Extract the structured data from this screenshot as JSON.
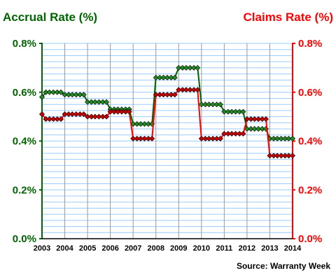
{
  "chart_data": {
    "type": "line",
    "title_left": "Accrual Rate (%)",
    "title_right": "Claims Rate (%)",
    "source": "Source: Warranty Week",
    "x_tick_labels": [
      "2003",
      "2004",
      "2005",
      "2006",
      "2007",
      "2008",
      "2009",
      "2010",
      "2011",
      "2012",
      "2013",
      "2014"
    ],
    "xlim": [
      2003,
      2014
    ],
    "ylim": [
      0,
      0.8
    ],
    "y_ticks": [
      0,
      0.2,
      0.4,
      0.6,
      0.8
    ],
    "y_tick_labels_left": [
      "0.0%",
      "0.2%",
      "0.4%",
      "0.6%",
      "0.8%"
    ],
    "y_tick_labels_right": [
      "0.0%",
      "0.2%",
      "0.4%",
      "0.6%",
      "0.8%"
    ],
    "grid": true,
    "colors": {
      "accrual": "#006400",
      "accrual_marker": "#228b22",
      "claims": "#ff0000",
      "claims_marker": "#cc0000",
      "hgrid": "#99ccff",
      "vgrid": "#999999"
    },
    "series": [
      {
        "id": "accrual",
        "axis": "left",
        "x": [
          2003.0,
          2003.17,
          2003.33,
          2003.5,
          2003.67,
          2003.83,
          2004.0,
          2004.17,
          2004.33,
          2004.5,
          2004.67,
          2004.83,
          2005.0,
          2005.17,
          2005.33,
          2005.5,
          2005.67,
          2005.83,
          2006.0,
          2006.17,
          2006.33,
          2006.5,
          2006.67,
          2006.83,
          2007.0,
          2007.17,
          2007.33,
          2007.5,
          2007.67,
          2007.83,
          2008.0,
          2008.17,
          2008.33,
          2008.5,
          2008.67,
          2008.83,
          2009.0,
          2009.17,
          2009.33,
          2009.5,
          2009.67,
          2009.83,
          2010.0,
          2010.17,
          2010.33,
          2010.5,
          2010.67,
          2010.83,
          2011.0,
          2011.17,
          2011.33,
          2011.5,
          2011.67,
          2011.83,
          2012.0,
          2012.17,
          2012.33,
          2012.5,
          2012.67,
          2012.83,
          2013.0,
          2013.17,
          2013.33,
          2013.5,
          2013.67,
          2013.83,
          2014.0
        ],
        "y": [
          0.58,
          0.6,
          0.6,
          0.6,
          0.6,
          0.6,
          0.59,
          0.59,
          0.59,
          0.59,
          0.59,
          0.59,
          0.56,
          0.56,
          0.56,
          0.56,
          0.56,
          0.56,
          0.53,
          0.53,
          0.53,
          0.53,
          0.53,
          0.53,
          0.47,
          0.47,
          0.47,
          0.47,
          0.47,
          0.47,
          0.66,
          0.66,
          0.66,
          0.66,
          0.66,
          0.66,
          0.7,
          0.7,
          0.7,
          0.7,
          0.7,
          0.7,
          0.55,
          0.55,
          0.55,
          0.55,
          0.55,
          0.55,
          0.52,
          0.52,
          0.52,
          0.52,
          0.52,
          0.52,
          0.45,
          0.45,
          0.45,
          0.45,
          0.45,
          0.45,
          0.41,
          0.41,
          0.41,
          0.41,
          0.41,
          0.41,
          0.41
        ]
      },
      {
        "id": "claims",
        "axis": "right",
        "x": [
          2003.0,
          2003.17,
          2003.33,
          2003.5,
          2003.67,
          2003.83,
          2004.0,
          2004.17,
          2004.33,
          2004.5,
          2004.67,
          2004.83,
          2005.0,
          2005.17,
          2005.33,
          2005.5,
          2005.67,
          2005.83,
          2006.0,
          2006.17,
          2006.33,
          2006.5,
          2006.67,
          2006.83,
          2007.0,
          2007.17,
          2007.33,
          2007.5,
          2007.67,
          2007.83,
          2008.0,
          2008.17,
          2008.33,
          2008.5,
          2008.67,
          2008.83,
          2009.0,
          2009.17,
          2009.33,
          2009.5,
          2009.67,
          2009.83,
          2010.0,
          2010.17,
          2010.33,
          2010.5,
          2010.67,
          2010.83,
          2011.0,
          2011.17,
          2011.33,
          2011.5,
          2011.67,
          2011.83,
          2012.0,
          2012.17,
          2012.33,
          2012.5,
          2012.67,
          2012.83,
          2013.0,
          2013.17,
          2013.33,
          2013.5,
          2013.67,
          2013.83,
          2014.0
        ],
        "y": [
          0.51,
          0.49,
          0.49,
          0.49,
          0.49,
          0.49,
          0.51,
          0.51,
          0.51,
          0.51,
          0.51,
          0.51,
          0.5,
          0.5,
          0.5,
          0.5,
          0.5,
          0.5,
          0.52,
          0.52,
          0.52,
          0.52,
          0.52,
          0.52,
          0.41,
          0.41,
          0.41,
          0.41,
          0.41,
          0.41,
          0.59,
          0.59,
          0.59,
          0.59,
          0.59,
          0.59,
          0.61,
          0.61,
          0.61,
          0.61,
          0.61,
          0.61,
          0.41,
          0.41,
          0.41,
          0.41,
          0.41,
          0.41,
          0.43,
          0.43,
          0.43,
          0.43,
          0.43,
          0.43,
          0.49,
          0.49,
          0.49,
          0.49,
          0.49,
          0.49,
          0.34,
          0.34,
          0.34,
          0.34,
          0.34,
          0.34,
          0.34
        ]
      }
    ]
  }
}
